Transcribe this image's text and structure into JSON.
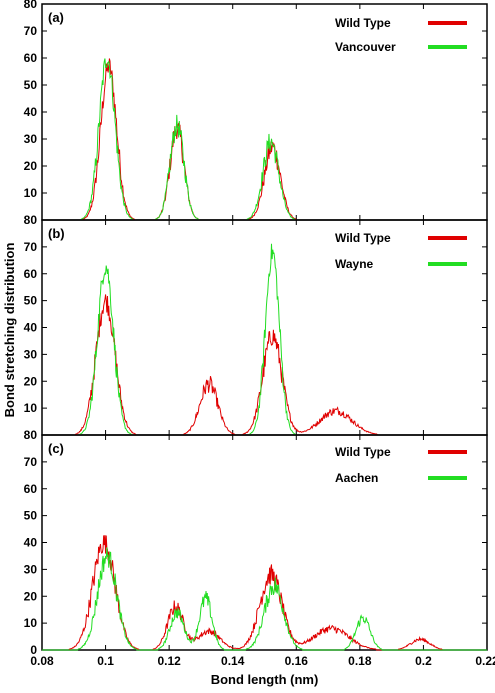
{
  "chart_data": {
    "type": "line",
    "xlabel": "Bond length (nm)",
    "ylabel": "Bond stretching distribution",
    "xlim": [
      0.08,
      0.22
    ],
    "x_ticks": [
      "0.08",
      "0.1",
      "0.12",
      "0.14",
      "0.16",
      "0.18",
      "0.2",
      "0.22"
    ],
    "colors": {
      "wild_type": "#e00000",
      "mutant": "#22dd22"
    },
    "panels": [
      {
        "label": "(a)",
        "ylim": [
          0,
          80
        ],
        "y_ticks": [
          "10",
          "20",
          "30",
          "40",
          "50",
          "60",
          "70",
          "80"
        ],
        "series": [
          {
            "name": "Wild Type",
            "color": "#e00000",
            "peaks": [
              {
                "center": 0.101,
                "height": 57,
                "width": 0.0025
              },
              {
                "center": 0.1225,
                "height": 34,
                "width": 0.0022
              },
              {
                "center": 0.1525,
                "height": 27,
                "width": 0.0025
              }
            ]
          },
          {
            "name": "Vancouver",
            "color": "#22dd22",
            "peaks": [
              {
                "center": 0.1005,
                "height": 60,
                "width": 0.0025
              },
              {
                "center": 0.1225,
                "height": 35,
                "width": 0.0022
              },
              {
                "center": 0.152,
                "height": 29,
                "width": 0.0025
              }
            ]
          }
        ]
      },
      {
        "label": "(b)",
        "ylim": [
          0,
          80
        ],
        "y_ticks": [
          "10",
          "20",
          "30",
          "40",
          "50",
          "60",
          "70",
          "80"
        ],
        "series": [
          {
            "name": "Wild Type",
            "color": "#e00000",
            "peaks": [
              {
                "center": 0.1,
                "height": 50,
                "width": 0.003
              },
              {
                "center": 0.1325,
                "height": 19,
                "width": 0.0028
              },
              {
                "center": 0.1525,
                "height": 37,
                "width": 0.003
              },
              {
                "center": 0.1725,
                "height": 9,
                "width": 0.005
              }
            ]
          },
          {
            "name": "Wayne",
            "color": "#22dd22",
            "peaks": [
              {
                "center": 0.1,
                "height": 63,
                "width": 0.0025
              },
              {
                "center": 0.1525,
                "height": 68,
                "width": 0.0022
              }
            ]
          }
        ]
      },
      {
        "label": "(c)",
        "ylim": [
          0,
          80
        ],
        "y_ticks": [
          "0",
          "10",
          "20",
          "30",
          "40",
          "50",
          "60",
          "70",
          "80"
        ],
        "series": [
          {
            "name": "Wild Type",
            "color": "#e00000",
            "peaks": [
              {
                "center": 0.0995,
                "height": 40,
                "width": 0.0035
              },
              {
                "center": 0.122,
                "height": 16,
                "width": 0.0025
              },
              {
                "center": 0.1325,
                "height": 7,
                "width": 0.0035
              },
              {
                "center": 0.152,
                "height": 28,
                "width": 0.0035
              },
              {
                "center": 0.171,
                "height": 8,
                "width": 0.0055
              },
              {
                "center": 0.199,
                "height": 4,
                "width": 0.003
              }
            ]
          },
          {
            "name": "Aachen",
            "color": "#22dd22",
            "peaks": [
              {
                "center": 0.1005,
                "height": 35,
                "width": 0.003
              },
              {
                "center": 0.1225,
                "height": 14,
                "width": 0.0022
              },
              {
                "center": 0.1315,
                "height": 19,
                "width": 0.002
              },
              {
                "center": 0.153,
                "height": 24,
                "width": 0.003
              },
              {
                "center": 0.181,
                "height": 12,
                "width": 0.0022
              }
            ]
          }
        ]
      }
    ]
  }
}
